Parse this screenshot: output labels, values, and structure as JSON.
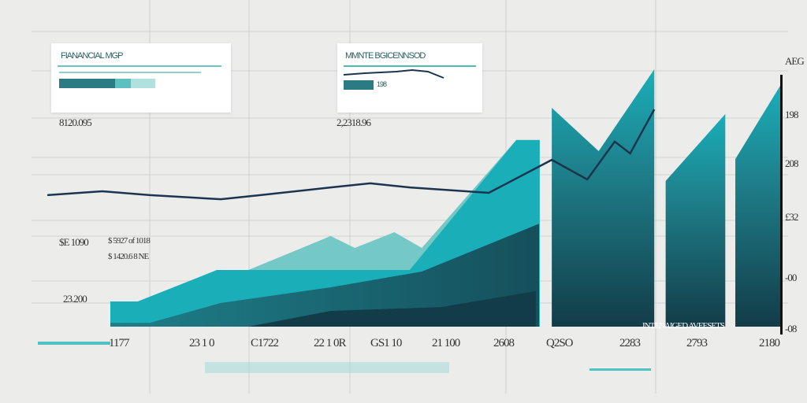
{
  "colors": {
    "teal_light": "#74c8c6",
    "teal": "#1aaeb9",
    "teal_mid": "#1e7f8a",
    "teal_dark": "#123c48",
    "line": "#1b3550",
    "background": "#ececea"
  },
  "cards": [
    {
      "title": "FIANANCIAL MGP",
      "bar_fraction": 0.58
    },
    {
      "title": "MMNTE BGICENNSOD",
      "badge": "198"
    }
  ],
  "annotations": {
    "a1": "8120.095",
    "a2": "2,2318.96",
    "a3": "$E 1090",
    "a4": "$ 5927 of 1018",
    "a5": "$ 1420.6 8 NE",
    "a6": "23.200",
    "legend": "INTENAIGED AVEESETS"
  },
  "right_axis": [
    "AEG",
    "198",
    "208",
    "£32",
    "-00",
    "-08"
  ],
  "chart_data": {
    "type": "area",
    "xlabels": [
      "1177",
      "23 1 0",
      "C1722",
      "22 1 0R",
      "GS1 10",
      "21 100",
      "2608",
      "Q2SO",
      "2283",
      "2793",
      "2180"
    ],
    "xlim": [
      0,
      100
    ],
    "ylim": [
      0,
      100
    ],
    "grid": true,
    "series": [
      {
        "layer": "light",
        "points": [
          [
            20.6,
            22
          ],
          [
            32.9,
            35.2
          ],
          [
            36.5,
            30.6
          ],
          [
            42.4,
            36.7
          ],
          [
            46.5,
            30.6
          ],
          [
            60.6,
            72.5
          ],
          [
            64.1,
            72.5
          ]
        ]
      },
      {
        "layer": "main",
        "points": [
          [
            0,
            9.8
          ],
          [
            4.1,
            9.8
          ],
          [
            15.9,
            22
          ],
          [
            44.7,
            22
          ],
          [
            60.6,
            72.5
          ],
          [
            64.1,
            72.5
          ]
        ]
      },
      {
        "layer": "mid",
        "points": [
          [
            0,
            1.5
          ],
          [
            5.9,
            1.5
          ],
          [
            16.5,
            9.2
          ],
          [
            32.9,
            15.3
          ],
          [
            46.5,
            21.4
          ],
          [
            64,
            40
          ]
        ]
      },
      {
        "layer": "dark",
        "points": [
          [
            20.6,
            0
          ],
          [
            32.9,
            6.1
          ],
          [
            49.4,
            7.6
          ],
          [
            63.5,
            13.8
          ]
        ]
      },
      {
        "layer": "block1",
        "points": [
          [
            65.9,
            85
          ],
          [
            72.9,
            68.2
          ],
          [
            81.2,
            100
          ]
        ]
      },
      {
        "layer": "block2",
        "points": [
          [
            82.9,
            56.6
          ],
          [
            91.8,
            82.6
          ]
        ]
      },
      {
        "layer": "block3",
        "points": [
          [
            93.3,
            65.1
          ],
          [
            100,
            93.6
          ]
        ]
      }
    ],
    "line": [
      [
        -9.4,
        51.1
      ],
      [
        -1.2,
        52.6
      ],
      [
        5.9,
        51.1
      ],
      [
        16.5,
        49.5
      ],
      [
        22.4,
        51.1
      ],
      [
        32.9,
        54.1
      ],
      [
        38.8,
        55.7
      ],
      [
        44.7,
        54.1
      ],
      [
        56.5,
        52
      ],
      [
        65.9,
        64.8
      ],
      [
        71.2,
        57.2
      ],
      [
        75.3,
        71.9
      ],
      [
        77.6,
        67.3
      ],
      [
        81.2,
        84.4
      ]
    ]
  }
}
